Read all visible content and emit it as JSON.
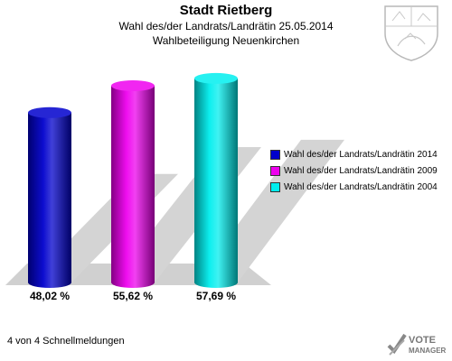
{
  "header": {
    "title": "Stadt Rietberg",
    "subtitle_1": "Wahl des/der Landrats/Landrätin 25.05.2014",
    "subtitle_2": "Wahlbeteiligung Neuenkirchen"
  },
  "chart_data": {
    "type": "bar",
    "categories": [
      "Wahl des/der Landrats/Landrätin 2014",
      "Wahl des/der Landrats/Landrätin 2009",
      "Wahl des/der Landrats/Landrätin 2004"
    ],
    "values": [
      48.02,
      55.62,
      57.69
    ],
    "value_labels": [
      "48,02 %",
      "55,62 %",
      "57,69 %"
    ],
    "colors": [
      "#0000cc",
      "#ee00ee",
      "#00eeee"
    ],
    "ylim": [
      0,
      62
    ],
    "legend": [
      "Wahl des/der Landrats/Landrätin 2014",
      "Wahl des/der Landrats/Landrätin 2009",
      "Wahl des/der Landrats/Landrätin 2004"
    ],
    "legend_position": "right",
    "grid": false
  },
  "footer": {
    "status": "4 von 4 Schnellmeldungen"
  },
  "logo": {
    "line1": "VOTE",
    "line2": "MANAGER"
  }
}
